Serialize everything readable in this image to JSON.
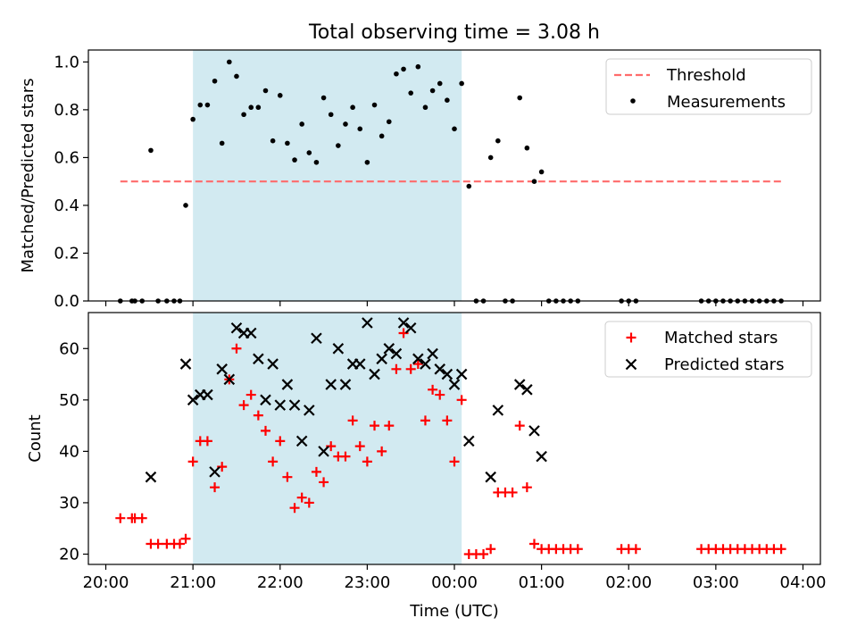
{
  "figure": {
    "title": "Total observing time = 3.08 h"
  },
  "chart_data": [
    {
      "type": "scatter",
      "ylabel": "Matched/Predicted stars",
      "xlabel": "",
      "xlim": [
        "20:00",
        "04:00"
      ],
      "ylim": [
        0,
        1.05
      ],
      "yticks": [
        0.0,
        0.2,
        0.4,
        0.6,
        0.8,
        1.0
      ],
      "ytick_labels": [
        "0.0",
        "0.2",
        "0.4",
        "0.6",
        "0.8",
        "1.0"
      ],
      "highlight_window": {
        "start": "21:00",
        "end": "00:05",
        "color": "#add8e6"
      },
      "legend": {
        "position": "upper right",
        "items": [
          "Threshold",
          "Measurements"
        ]
      },
      "series": [
        {
          "name": "Threshold",
          "kind": "dashed-line",
          "color": "#ff6b6b",
          "x": [
            "20:10",
            "03:45"
          ],
          "y": [
            0.5,
            0.5
          ]
        },
        {
          "name": "Measurements",
          "kind": "dot",
          "color": "#000000",
          "x": [
            "20:10",
            "20:18",
            "20:20",
            "20:25",
            "20:31",
            "20:36",
            "20:42",
            "20:47",
            "20:51",
            "20:55",
            "21:00",
            "21:05",
            "21:10",
            "21:15",
            "21:20",
            "21:25",
            "21:30",
            "21:35",
            "21:40",
            "21:45",
            "21:50",
            "21:55",
            "22:00",
            "22:05",
            "22:10",
            "22:15",
            "22:20",
            "22:25",
            "22:30",
            "22:35",
            "22:40",
            "22:45",
            "22:50",
            "22:55",
            "23:00",
            "23:05",
            "23:10",
            "23:15",
            "23:20",
            "23:25",
            "23:30",
            "23:35",
            "23:40",
            "23:45",
            "23:50",
            "23:55",
            "00:00",
            "00:05",
            "00:10",
            "00:15",
            "00:20",
            "00:25",
            "00:30",
            "00:35",
            "00:40",
            "00:45",
            "00:50",
            "00:55",
            "01:00",
            "01:05",
            "01:10",
            "01:15",
            "01:20",
            "01:25",
            "01:55",
            "02:00",
            "02:05",
            "02:50",
            "02:55",
            "03:00",
            "03:05",
            "03:10",
            "03:15",
            "03:20",
            "03:25",
            "03:30",
            "03:35",
            "03:40",
            "03:45"
          ],
          "y": [
            0,
            0,
            0,
            0,
            0.63,
            0,
            0,
            0,
            0,
            0.4,
            0.76,
            0.82,
            0.82,
            0.92,
            0.66,
            1.0,
            0.94,
            0.78,
            0.81,
            0.81,
            0.88,
            0.67,
            0.86,
            0.66,
            0.59,
            0.74,
            0.62,
            0.58,
            0.85,
            0.78,
            0.65,
            0.74,
            0.81,
            0.72,
            0.58,
            0.82,
            0.69,
            0.75,
            0.95,
            0.97,
            0.87,
            0.98,
            0.81,
            0.88,
            0.91,
            0.84,
            0.72,
            0.91,
            0.48,
            0,
            0,
            0.6,
            0.67,
            0,
            0,
            0.85,
            0.64,
            0.5,
            0.54,
            0,
            0,
            0,
            0,
            0,
            0,
            0,
            0,
            0,
            0,
            0,
            0,
            0,
            0,
            0,
            0,
            0,
            0,
            0,
            0
          ]
        }
      ]
    },
    {
      "type": "scatter",
      "ylabel": "Count",
      "xlabel": "Time (UTC)",
      "xlim": [
        "20:00",
        "04:00"
      ],
      "xticks": [
        "20:00",
        "21:00",
        "22:00",
        "23:00",
        "00:00",
        "01:00",
        "02:00",
        "03:00",
        "04:00"
      ],
      "ylim": [
        18,
        67
      ],
      "yticks": [
        20,
        30,
        40,
        50,
        60
      ],
      "ytick_labels": [
        "20",
        "30",
        "40",
        "50",
        "60"
      ],
      "highlight_window": {
        "start": "21:00",
        "end": "00:05",
        "color": "#add8e6"
      },
      "legend": {
        "position": "upper right",
        "items": [
          "Matched stars",
          "Predicted stars"
        ]
      },
      "series": [
        {
          "name": "Matched stars",
          "kind": "plus",
          "color": "#ff0000",
          "x": [
            "20:10",
            "20:18",
            "20:20",
            "20:25",
            "20:31",
            "20:36",
            "20:42",
            "20:47",
            "20:51",
            "20:55",
            "21:00",
            "21:05",
            "21:10",
            "21:15",
            "21:20",
            "21:25",
            "21:30",
            "21:35",
            "21:40",
            "21:45",
            "21:50",
            "21:55",
            "22:00",
            "22:05",
            "22:10",
            "22:15",
            "22:20",
            "22:25",
            "22:30",
            "22:35",
            "22:40",
            "22:45",
            "22:50",
            "22:55",
            "23:00",
            "23:05",
            "23:10",
            "23:15",
            "23:20",
            "23:25",
            "23:30",
            "23:35",
            "23:40",
            "23:45",
            "23:50",
            "23:55",
            "00:00",
            "00:05",
            "00:10",
            "00:15",
            "00:20",
            "00:25",
            "00:30",
            "00:35",
            "00:40",
            "00:45",
            "00:50",
            "00:55",
            "01:00",
            "01:05",
            "01:10",
            "01:15",
            "01:20",
            "01:25",
            "01:55",
            "02:00",
            "02:05",
            "02:50",
            "02:55",
            "03:00",
            "03:05",
            "03:10",
            "03:15",
            "03:20",
            "03:25",
            "03:30",
            "03:35",
            "03:40",
            "03:45"
          ],
          "y": [
            27,
            27,
            27,
            27,
            22,
            22,
            22,
            22,
            22,
            23,
            38,
            42,
            42,
            33,
            37,
            54,
            60,
            49,
            51,
            47,
            44,
            38,
            42,
            35,
            29,
            31,
            30,
            36,
            34,
            41,
            39,
            39,
            46,
            41,
            38,
            45,
            40,
            45,
            56,
            63,
            56,
            57,
            46,
            52,
            51,
            46,
            38,
            50,
            20,
            20,
            20,
            21,
            32,
            32,
            32,
            45,
            33,
            22,
            21,
            21,
            21,
            21,
            21,
            21,
            21,
            21,
            21,
            21,
            21,
            21,
            21,
            21,
            21,
            21,
            21,
            21,
            21,
            21,
            21
          ]
        },
        {
          "name": "Predicted stars",
          "kind": "cross",
          "color": "#000000",
          "x": [
            "20:31",
            "20:55",
            "21:00",
            "21:05",
            "21:10",
            "21:15",
            "21:20",
            "21:25",
            "21:30",
            "21:35",
            "21:40",
            "21:45",
            "21:50",
            "21:55",
            "22:00",
            "22:05",
            "22:10",
            "22:15",
            "22:20",
            "22:25",
            "22:30",
            "22:35",
            "22:40",
            "22:45",
            "22:50",
            "22:55",
            "23:00",
            "23:05",
            "23:10",
            "23:15",
            "23:20",
            "23:25",
            "23:30",
            "23:35",
            "23:40",
            "23:45",
            "23:50",
            "23:55",
            "00:00",
            "00:05",
            "00:10",
            "00:25",
            "00:30",
            "00:45",
            "00:50",
            "00:55",
            "01:00"
          ],
          "y": [
            35,
            57,
            50,
            51,
            51,
            36,
            56,
            54,
            64,
            63,
            63,
            58,
            50,
            57,
            49,
            53,
            49,
            42,
            48,
            62,
            40,
            53,
            60,
            53,
            57,
            57,
            65,
            55,
            58,
            60,
            59,
            65,
            64,
            58,
            57,
            59,
            56,
            55,
            53,
            55,
            42,
            35,
            48,
            53,
            52,
            44,
            39
          ]
        }
      ]
    }
  ]
}
